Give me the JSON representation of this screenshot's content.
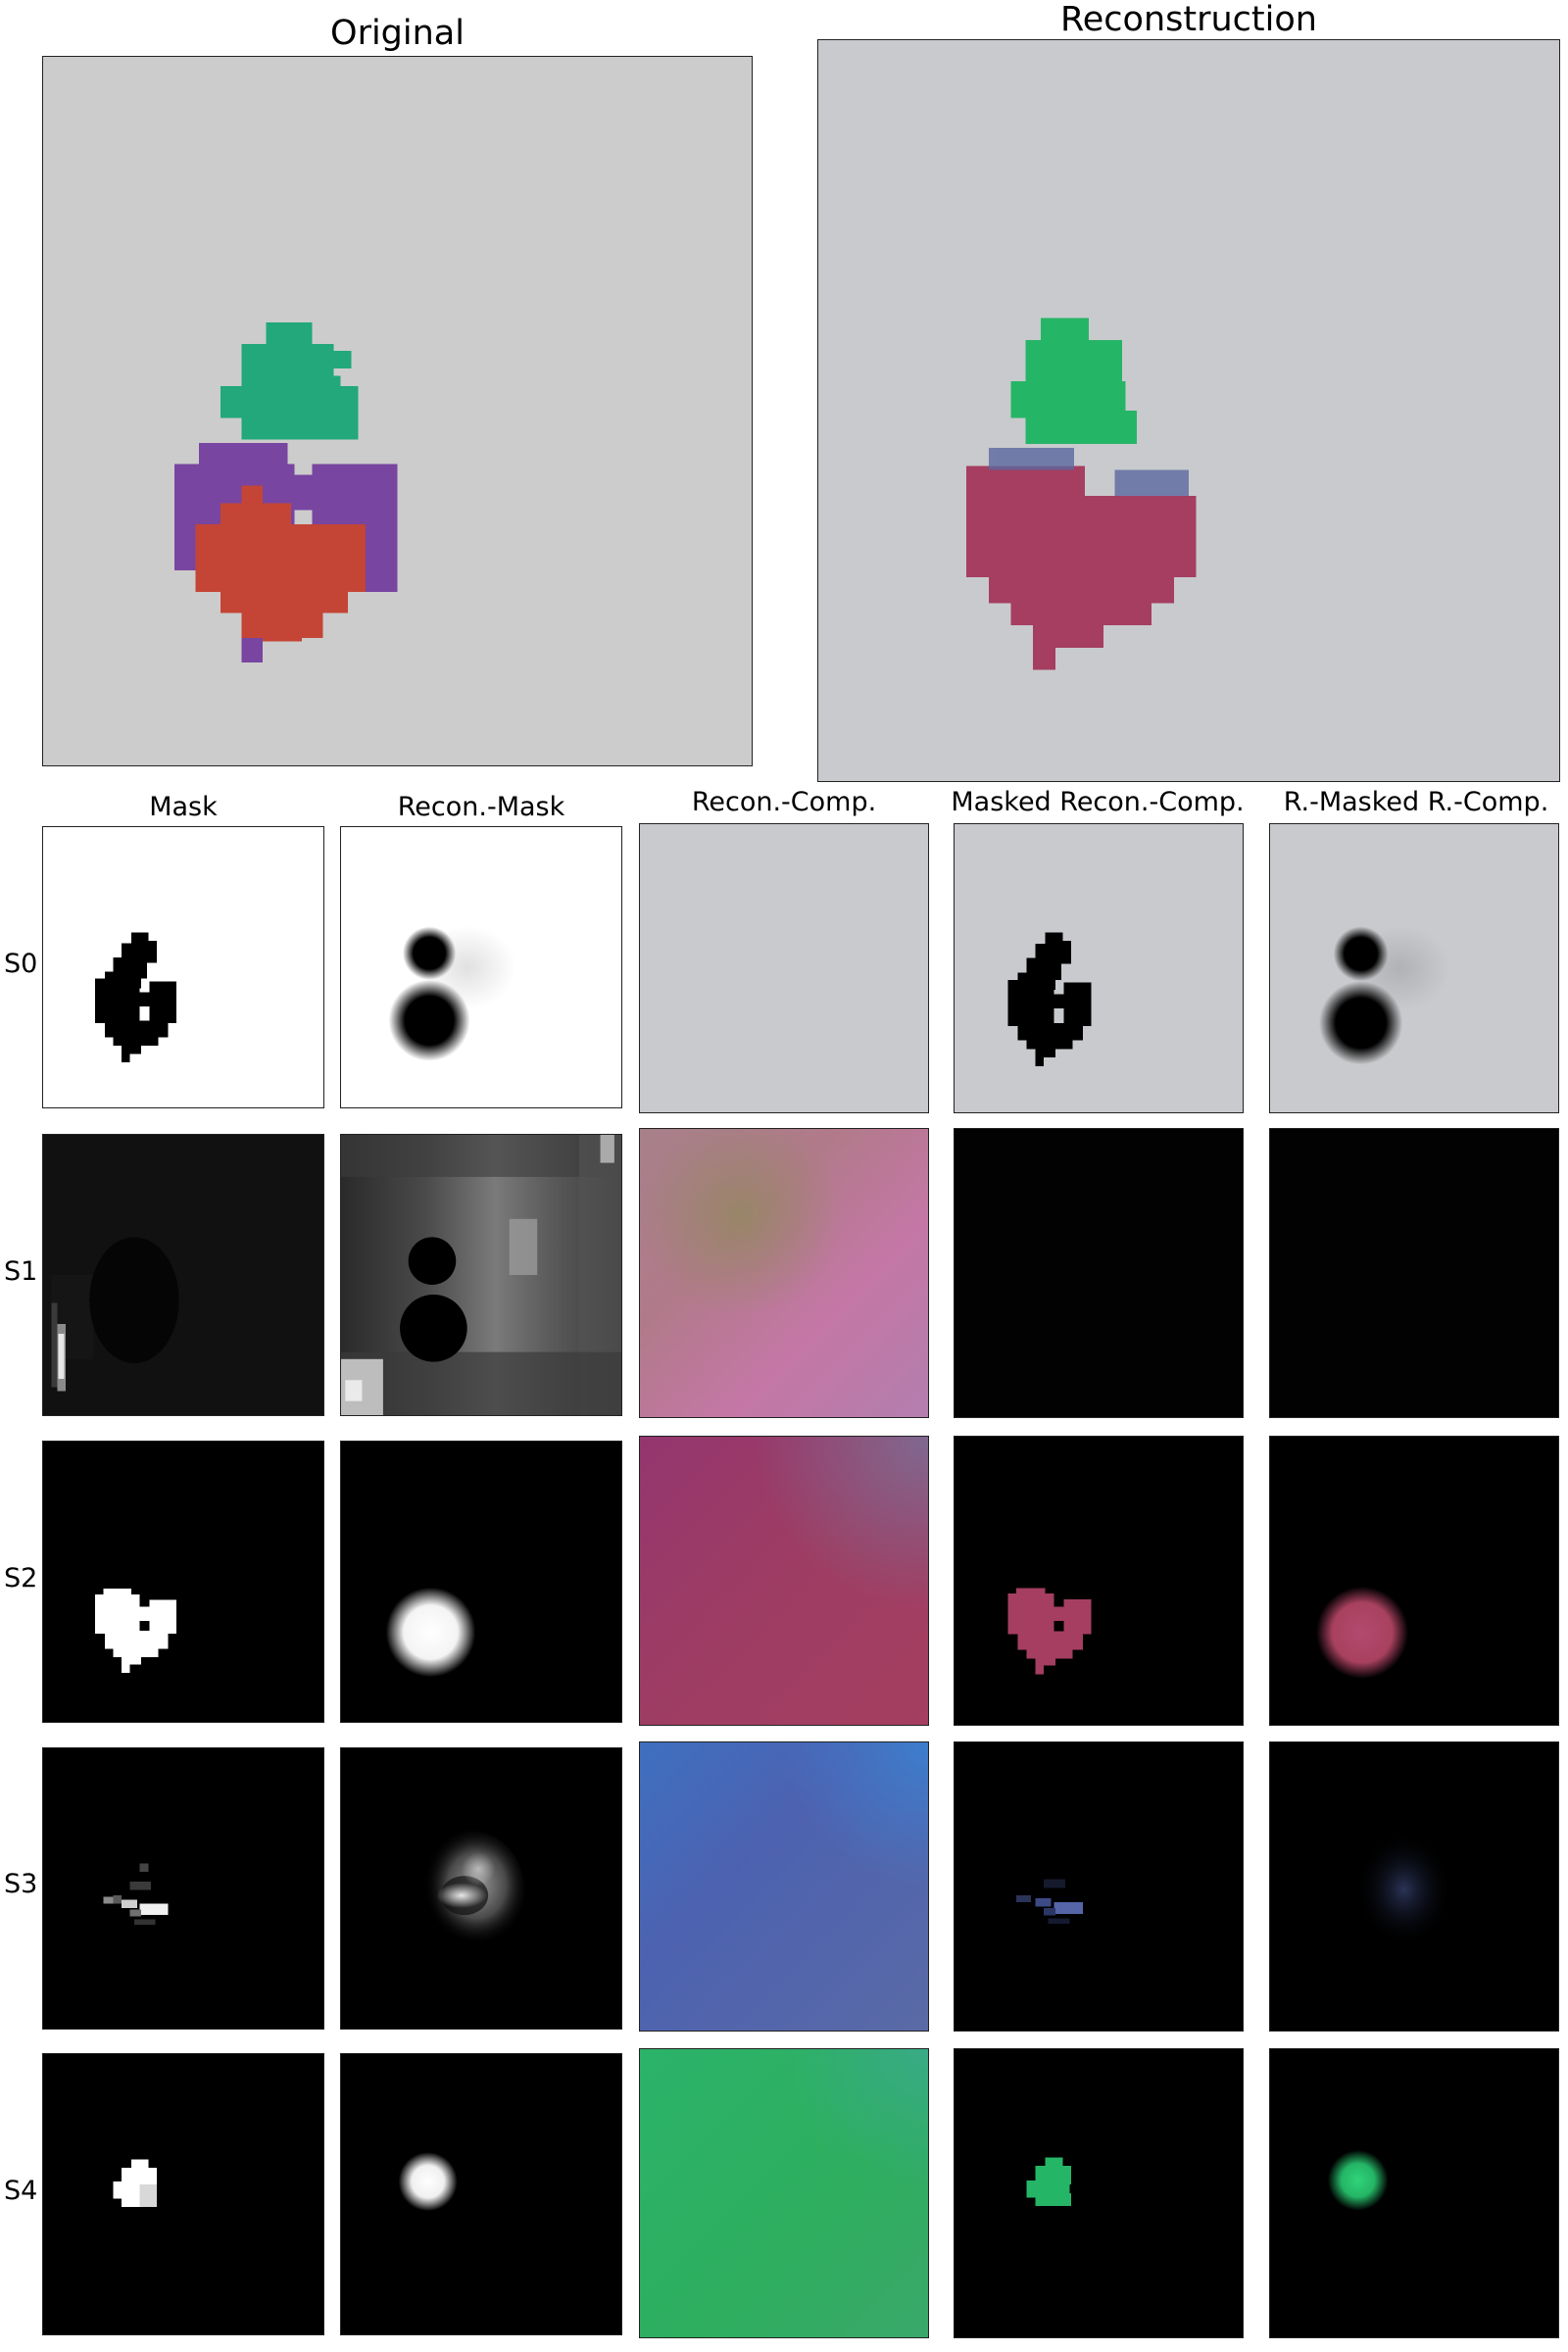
{
  "titles": {
    "original": "Original",
    "reconstruction": "Reconstruction"
  },
  "column_titles": [
    "Mask",
    "Recon.-Mask",
    "Recon.-Comp.",
    "Masked Recon.-Comp.",
    "R.-Masked R.-Comp."
  ],
  "row_labels": [
    "S0",
    "S1",
    "S2",
    "S3",
    "S4"
  ],
  "colors": {
    "background_gray": "#cccccc",
    "recon_gray": "#c9cacd",
    "green": "#22a87a",
    "purple": "#7845a0",
    "red": "#c44535",
    "recon_green": "#25b566",
    "recon_red": "#a53e60",
    "recon_blue": "#5c68a0",
    "black": "#000000",
    "white": "#ffffff"
  }
}
